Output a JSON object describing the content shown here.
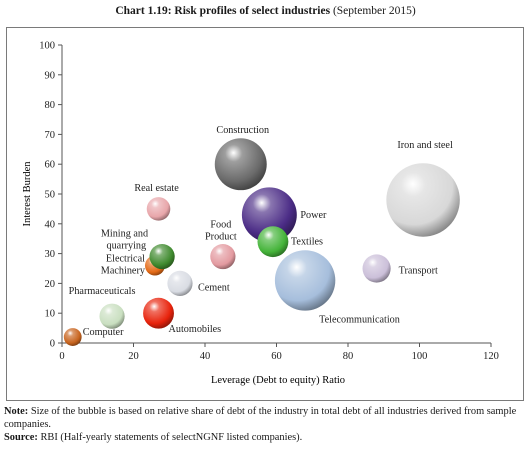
{
  "title": {
    "prefix": "Chart 1.19: Risk profiles of select industries",
    "suffix": "(September 2015)"
  },
  "chart_data": {
    "type": "bubble",
    "xlabel": "Leverage (Debt to equity) Ratio",
    "ylabel": "Interest Burden",
    "xlim": [
      0,
      120
    ],
    "ylim": [
      0,
      100
    ],
    "x_ticks": [
      "0",
      "20",
      "40",
      "60",
      "80",
      "100",
      "120"
    ],
    "y_ticks": [
      "0",
      "10",
      "20",
      "30",
      "40",
      "50",
      "60",
      "70",
      "80",
      "90",
      "100"
    ],
    "grid": false,
    "points": [
      {
        "label": "Computer",
        "x": 3,
        "y": 2,
        "size": 2,
        "color": "#c8641e"
      },
      {
        "label": "Pharmaceuticals",
        "x": 14,
        "y": 9,
        "size": 4,
        "color": "#c9dfc0"
      },
      {
        "label": "Automobiles",
        "x": 27,
        "y": 10,
        "size": 6,
        "color": "#e8230c"
      },
      {
        "label": "Cement",
        "x": 33,
        "y": 20,
        "size": 4,
        "color": "#d9dce3"
      },
      {
        "label": "Electrical Machinery",
        "x": 26,
        "y": 26,
        "size": 2.5,
        "color": "#e46a16"
      },
      {
        "label": "Mining and quarrying",
        "x": 28,
        "y": 29,
        "size": 4,
        "color": "#3f8a2e"
      },
      {
        "label": "Real estate",
        "x": 27,
        "y": 45,
        "size": 3.5,
        "color": "#e8a6aa"
      },
      {
        "label": "Food Product",
        "x": 45,
        "y": 29,
        "size": 4,
        "color": "#e39aa0"
      },
      {
        "label": "Construction",
        "x": 50,
        "y": 60,
        "size": 17,
        "color": "#6a6a6a"
      },
      {
        "label": "Power",
        "x": 58,
        "y": 43,
        "size": 19,
        "color": "#4b2c86"
      },
      {
        "label": "Textiles",
        "x": 59,
        "y": 34,
        "size": 6,
        "color": "#45b43a"
      },
      {
        "label": "Telecommunication",
        "x": 68,
        "y": 21,
        "size": 23,
        "color": "#a6bedc"
      },
      {
        "label": "Transport",
        "x": 88,
        "y": 25,
        "size": 5,
        "color": "#cbbfd9"
      },
      {
        "label": "Iron and steel",
        "x": 101,
        "y": 48,
        "size": 34,
        "color": "#d8d8d8"
      }
    ]
  },
  "notes": {
    "note_label": "Note:",
    "note_text": "Size of the bubble is based on relative share of debt of the industry in total debt of all industries derived from sample companies.",
    "source_label": "Source:",
    "source_text": "RBI (Half-yearly statements of selectNGNF listed companies)."
  }
}
